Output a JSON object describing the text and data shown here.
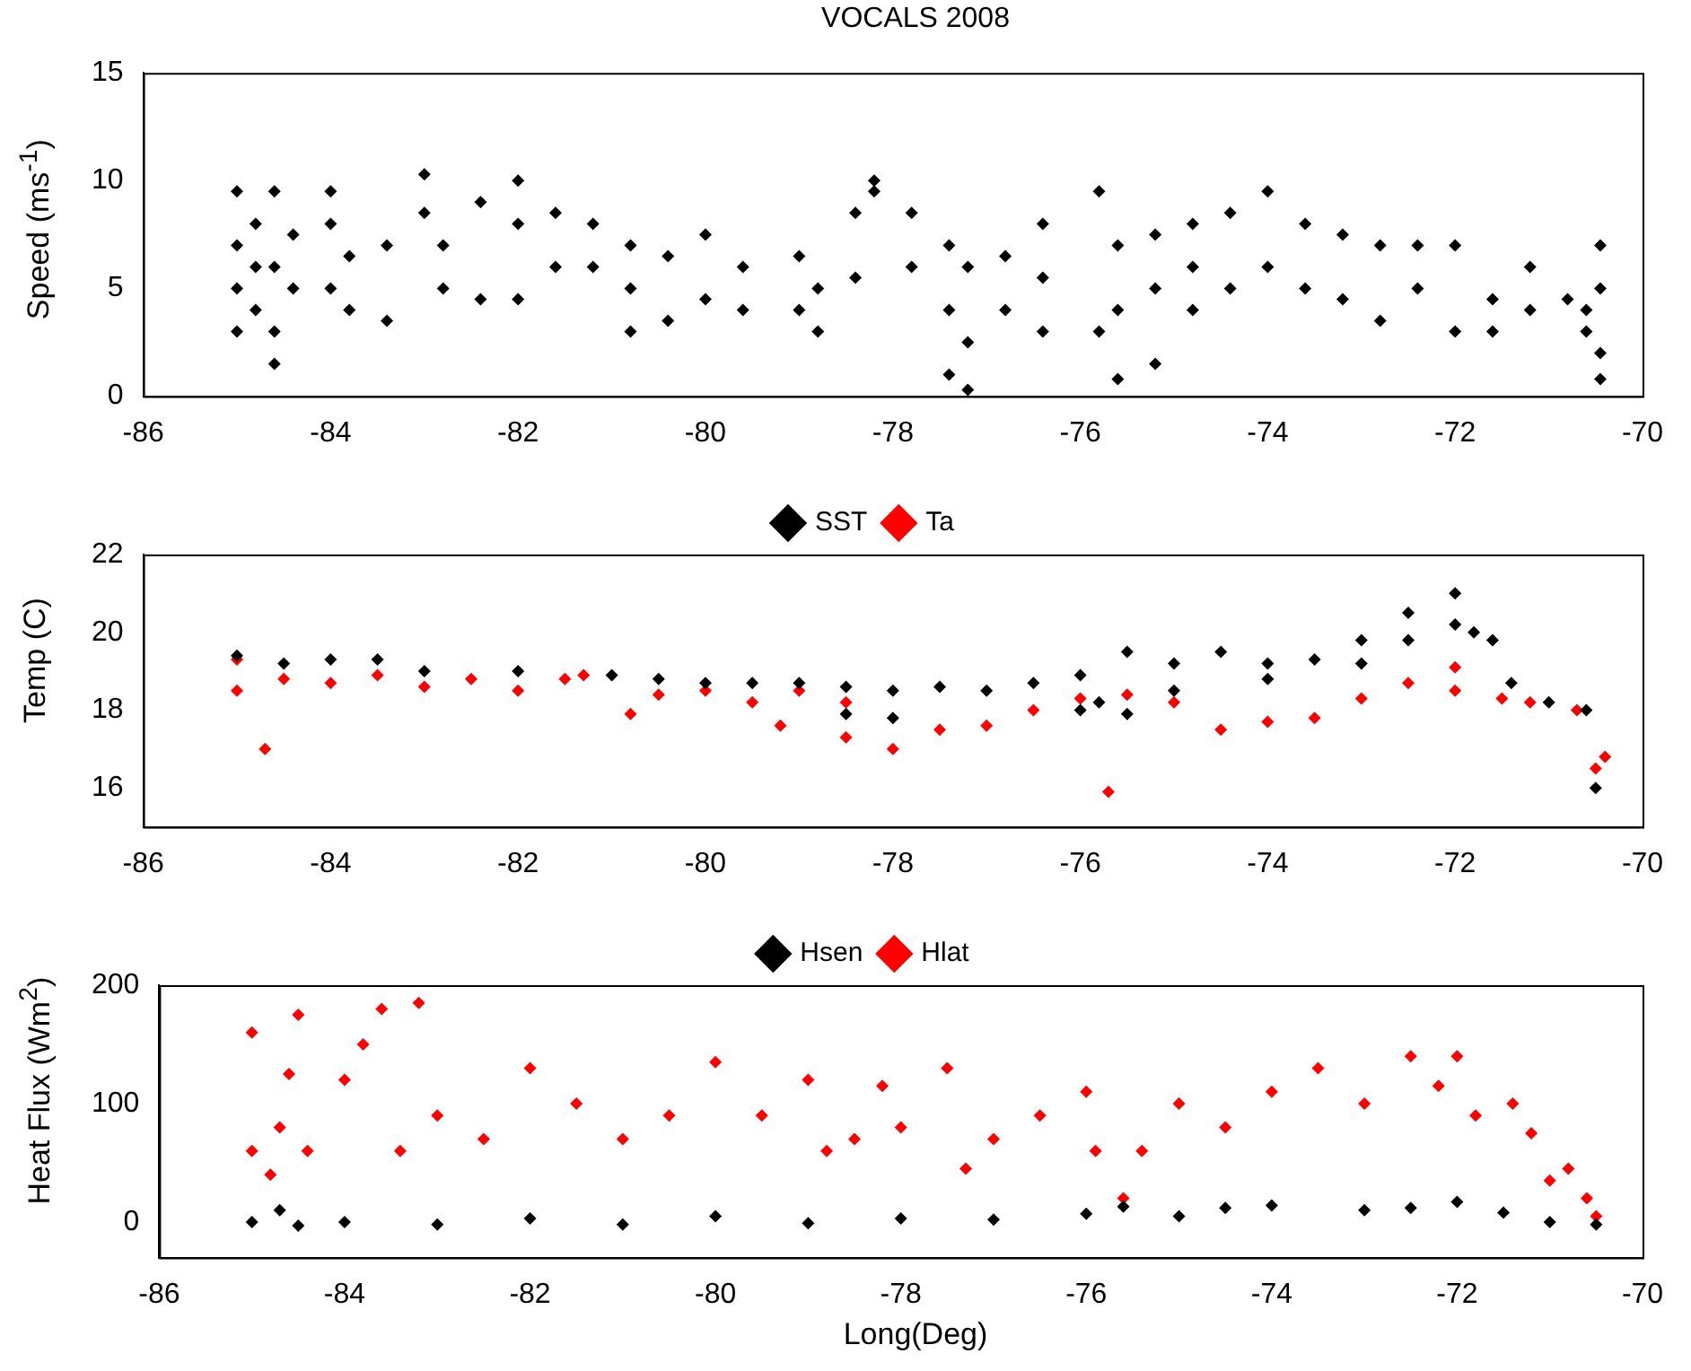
{
  "chart_data": [
    {
      "type": "scatter",
      "title": "VOCALS 2008",
      "ylabel": "Speed (ms$^{-1}$)",
      "xlim": [
        -86,
        -70
      ],
      "xticks": [
        -86,
        -84,
        -82,
        -80,
        -78,
        -76,
        -74,
        -72,
        -70
      ],
      "ylim": [
        0,
        15
      ],
      "yticks": [
        0,
        5,
        10,
        15
      ],
      "marker": "diamond",
      "grid": false,
      "legend": false,
      "series": [
        {
          "color": "#000000",
          "x": [
            -85,
            -85,
            -85,
            -85,
            -84.8,
            -84.8,
            -84.8,
            -84.6,
            -84.6,
            -84.6,
            -84.6,
            -84.4,
            -84.4,
            -84,
            -84,
            -84,
            -83.8,
            -83.8,
            -83.4,
            -83.4,
            -83,
            -83,
            -82.8,
            -82.8,
            -82.4,
            -82.4,
            -82,
            -82,
            -82,
            -81.6,
            -81.6,
            -81.2,
            -81.2,
            -80.8,
            -80.8,
            -80.8,
            -80.4,
            -80.4,
            -80,
            -80,
            -79.6,
            -79.6,
            -79,
            -79,
            -78.8,
            -78.8,
            -78.4,
            -78.4,
            -78.2,
            -78.2,
            -77.8,
            -77.8,
            -77.4,
            -77.4,
            -77.4,
            -77.2,
            -77.2,
            -77.2,
            -76.8,
            -76.8,
            -76.4,
            -76.4,
            -76.4,
            -75.8,
            -75.8,
            -75.6,
            -75.6,
            -75.6,
            -75.2,
            -75.2,
            -75.2,
            -74.8,
            -74.8,
            -74.8,
            -74.4,
            -74.4,
            -74,
            -74,
            -73.6,
            -73.6,
            -73.2,
            -73.2,
            -72.8,
            -72.8,
            -72.4,
            -72.4,
            -72,
            -72,
            -71.6,
            -71.6,
            -71.2,
            -71.2,
            -70.8,
            -70.6,
            -70.6,
            -70.45,
            -70.45,
            -70.45,
            -70.45
          ],
          "values": [
            3,
            5,
            7,
            9.5,
            4,
            6,
            8,
            1.5,
            3,
            6,
            9.5,
            5,
            7.5,
            5,
            8,
            9.5,
            4,
            6.5,
            3.5,
            7,
            8.5,
            10.3,
            5,
            7,
            4.5,
            9,
            4.5,
            8,
            10,
            6,
            8.5,
            6,
            8,
            3,
            5,
            7,
            3.5,
            6.5,
            4.5,
            7.5,
            4,
            6,
            4,
            6.5,
            3,
            5,
            5.5,
            8.5,
            9.5,
            10,
            6,
            8.5,
            1,
            4,
            7,
            0.3,
            2.5,
            6,
            4,
            6.5,
            3,
            5.5,
            8,
            3,
            9.5,
            0.8,
            4,
            7,
            1.5,
            5,
            7.5,
            4,
            6,
            8,
            5,
            8.5,
            6,
            9.5,
            5,
            8,
            4.5,
            7.5,
            3.5,
            7,
            5,
            7,
            3,
            7,
            3,
            4.5,
            4,
            6,
            4.5,
            3,
            4,
            0.8,
            2,
            5,
            7
          ]
        }
      ]
    },
    {
      "type": "scatter",
      "ylabel": "Temp (C)",
      "xlim": [
        -86,
        -70
      ],
      "xticks": [
        -86,
        -84,
        -82,
        -80,
        -78,
        -76,
        -74,
        -72,
        -70
      ],
      "ylim": [
        15,
        22
      ],
      "yticks": [
        16,
        18,
        20,
        22
      ],
      "marker": "diamond",
      "grid": false,
      "legend": "top",
      "series": [
        {
          "name": "SST",
          "color": "#000000",
          "x": [
            -85,
            -84.5,
            -84,
            -83.5,
            -83,
            -82,
            -81,
            -80.5,
            -80,
            -79.5,
            -79,
            -78.5,
            -78,
            -77.5,
            -77,
            -76.5,
            -76,
            -75.8,
            -75.5,
            -75,
            -74.5,
            -74,
            -73.5,
            -73,
            -72.5,
            -72,
            -71.8,
            -71.6,
            -71.4,
            -71,
            -70.6,
            -70.5,
            -78.5,
            -78,
            -76,
            -75.5,
            -75,
            -74,
            -73,
            -72.5,
            -72
          ],
          "values": [
            19.4,
            19.2,
            19.3,
            19.3,
            19,
            19,
            18.9,
            18.8,
            18.7,
            18.7,
            18.7,
            18.6,
            18.5,
            18.6,
            18.5,
            18.7,
            18.9,
            18.2,
            19.5,
            19.2,
            19.5,
            19.2,
            19.3,
            19.8,
            20.5,
            21,
            20,
            19.8,
            18.7,
            18.2,
            18,
            16,
            17.9,
            17.8,
            18,
            17.9,
            18.5,
            18.8,
            19.2,
            19.8,
            20.2
          ]
        },
        {
          "name": "Ta",
          "color": "#ff0000",
          "x": [
            -85,
            -85,
            -84.7,
            -84.5,
            -84,
            -83.5,
            -83,
            -82.5,
            -82,
            -81.5,
            -81.3,
            -80.8,
            -80.5,
            -80,
            -79.5,
            -79.2,
            -79,
            -78.5,
            -78.5,
            -78,
            -77.5,
            -77,
            -76.5,
            -76,
            -75.7,
            -75.5,
            -75,
            -74.5,
            -74,
            -73.5,
            -73,
            -72.5,
            -72,
            -72,
            -71.5,
            -71.2,
            -70.7,
            -70.5,
            -70.4
          ],
          "values": [
            19.3,
            18.5,
            17,
            18.8,
            18.7,
            18.9,
            18.6,
            18.8,
            18.5,
            18.8,
            18.9,
            17.9,
            18.4,
            18.5,
            18.2,
            17.6,
            18.5,
            18.2,
            17.3,
            17,
            17.5,
            17.6,
            18,
            18.3,
            15.9,
            18.4,
            18.2,
            17.5,
            17.7,
            17.8,
            18.3,
            18.7,
            19.1,
            18.5,
            18.3,
            18.2,
            18,
            16.5,
            16.8
          ]
        }
      ]
    },
    {
      "type": "scatter",
      "ylabel": "Heat Flux (Wm$^{2}$)",
      "xlabel": "Long(Deg)",
      "xlim": [
        -86,
        -70
      ],
      "xticks": [
        -86,
        -84,
        -82,
        -80,
        -78,
        -76,
        -74,
        -72,
        -70
      ],
      "ylim": [
        -30,
        200
      ],
      "yticks": [
        0,
        100,
        200
      ],
      "marker": "diamond",
      "grid": false,
      "legend": "top",
      "series": [
        {
          "name": "Hsen",
          "color": "#000000",
          "x": [
            -85,
            -84.7,
            -84.5,
            -84,
            -83,
            -82,
            -81,
            -80,
            -79,
            -78,
            -77,
            -76,
            -75.6,
            -75,
            -74.5,
            -74,
            -73,
            -72.5,
            -72,
            -71.5,
            -71,
            -70.5
          ],
          "values": [
            0,
            10,
            -3,
            0,
            -2,
            3,
            -2,
            5,
            -1,
            3,
            2,
            7,
            13,
            5,
            12,
            14,
            10,
            12,
            17,
            8,
            0,
            -2
          ]
        },
        {
          "name": "Hlat",
          "color": "#ff0000",
          "x": [
            -85,
            -85,
            -84.8,
            -84.7,
            -84.6,
            -84.5,
            -84.4,
            -84,
            -83.8,
            -83.6,
            -83.4,
            -83.2,
            -83,
            -82.5,
            -82,
            -81.5,
            -81,
            -80.5,
            -80,
            -79.5,
            -79,
            -78.8,
            -78.5,
            -78.2,
            -78,
            -77.5,
            -77.3,
            -77,
            -76.5,
            -76,
            -75.9,
            -75.6,
            -75.4,
            -75,
            -74.5,
            -74,
            -73.5,
            -73,
            -72.5,
            -72.2,
            -72,
            -71.8,
            -71.4,
            -71.2,
            -71,
            -70.8,
            -70.6,
            -70.5
          ],
          "values": [
            160,
            60,
            40,
            80,
            125,
            175,
            60,
            120,
            150,
            180,
            60,
            185,
            90,
            70,
            130,
            100,
            70,
            90,
            135,
            90,
            120,
            60,
            70,
            115,
            80,
            130,
            45,
            70,
            90,
            110,
            60,
            20,
            60,
            100,
            80,
            110,
            130,
            100,
            140,
            115,
            140,
            90,
            100,
            75,
            35,
            45,
            20,
            5
          ]
        }
      ]
    }
  ]
}
